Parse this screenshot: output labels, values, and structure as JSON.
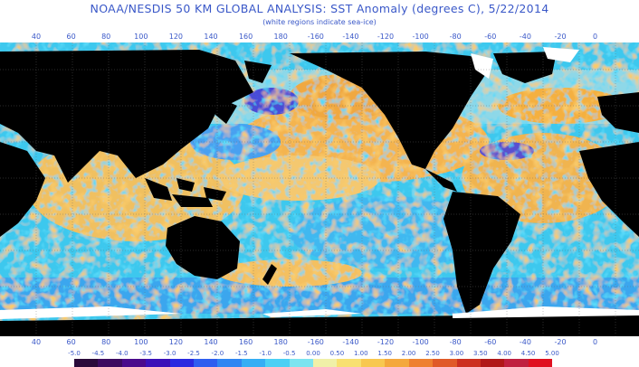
{
  "title": "NOAA/NESDIS 50 KM GLOBAL ANALYSIS: SST Anomaly (degrees C), 5/22/2014",
  "subtitle": "(white regions indicate sea-ice)",
  "lon_labels": [
    "40",
    "60",
    "80",
    "100",
    "120",
    "140",
    "160",
    "180",
    "-160",
    "-140",
    "-120",
    "-100",
    "-80",
    "-60",
    "-40",
    "-20",
    "0"
  ],
  "colorbar": {
    "labels": [
      "-5.0",
      "-4.5",
      "-4.0",
      "-3.5",
      "-3.0",
      "-2.5",
      "-2.0",
      "-1.5",
      "-1.0",
      "-0.5",
      "0.00",
      "0.50",
      "1.00",
      "1.50",
      "2.00",
      "2.50",
      "3.00",
      "3.50",
      "4.00",
      "4.50",
      "5.00"
    ],
    "colors": [
      "#2a0a3a",
      "#3c0a60",
      "#4a0a8c",
      "#3a10b8",
      "#2a2ae0",
      "#2e5ef0",
      "#2f86f2",
      "#35aef4",
      "#4cd0f4",
      "#7ce4f0",
      "#f0f0a8",
      "#f8e070",
      "#f8c850",
      "#f4a83c",
      "#ee8030",
      "#e05a28",
      "#cc3020",
      "#b01818",
      "#c02040",
      "#e01020"
    ]
  },
  "colors": {
    "land": "#000000",
    "ice": "#ffffff",
    "grid": "#6a6a6a",
    "axis_text": "#3a58c8"
  }
}
